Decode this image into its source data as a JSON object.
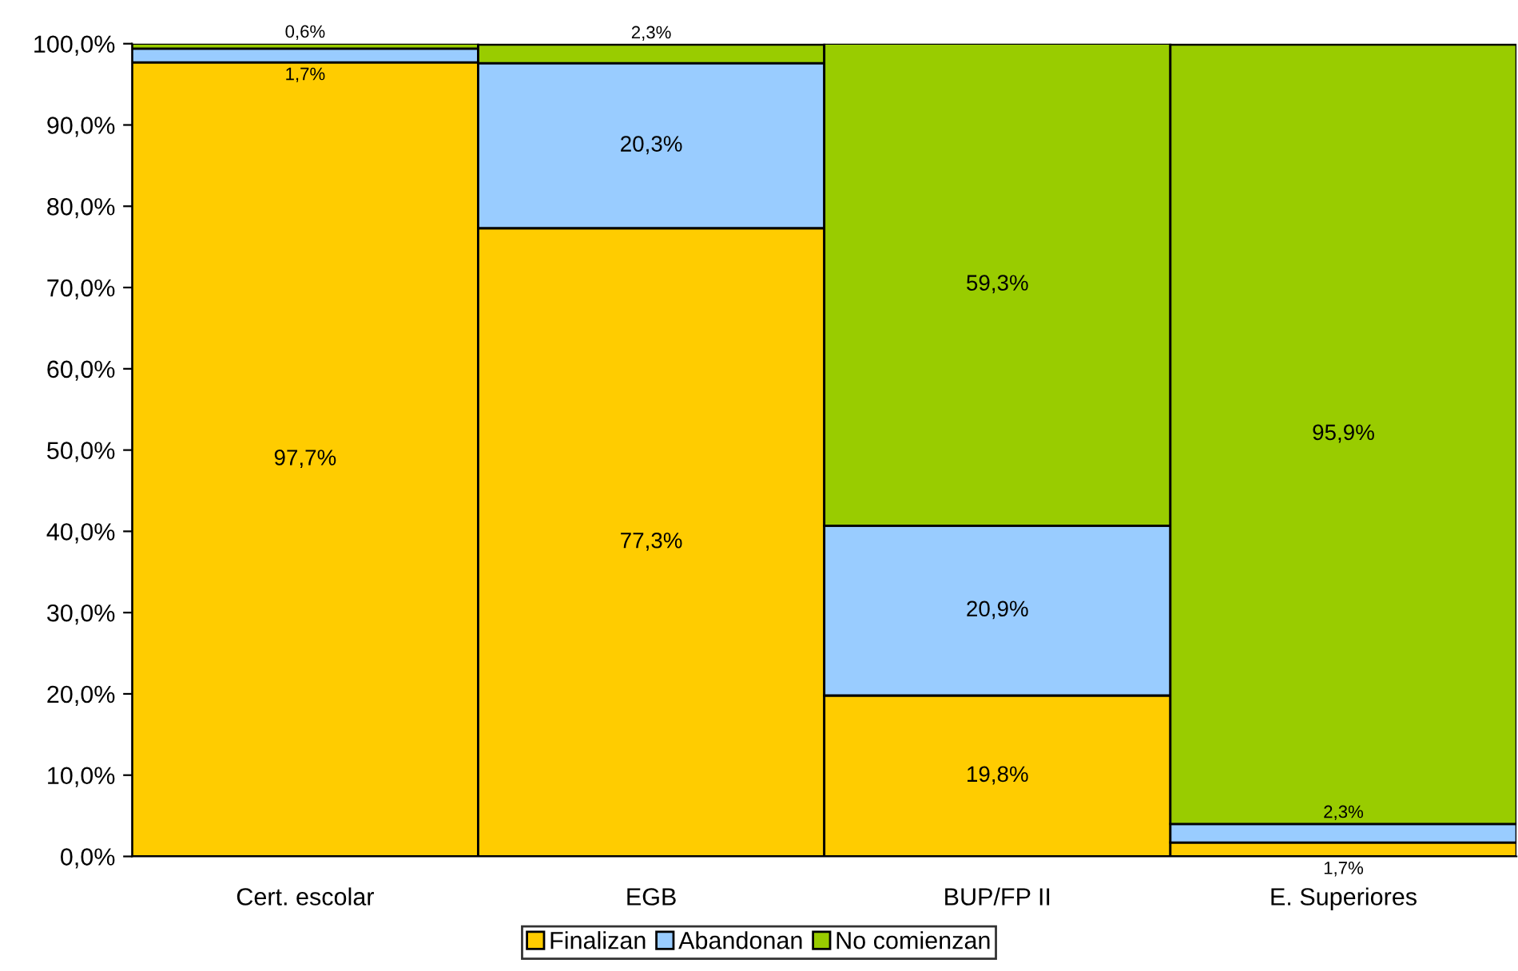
{
  "chart_data": {
    "type": "bar",
    "stacked": true,
    "categories": [
      "Cert. escolar",
      "EGB",
      "BUP/FP II",
      "E. Superiores"
    ],
    "series": [
      {
        "name": "Finalizan",
        "color": "#ffcc00",
        "values": [
          97.7,
          77.3,
          19.8,
          1.7
        ],
        "value_labels": [
          "97,7%",
          "77,3%",
          "19,8%",
          "1,7%"
        ]
      },
      {
        "name": "Abandonan",
        "color": "#99ccff",
        "values": [
          1.7,
          20.3,
          20.9,
          2.3
        ],
        "value_labels": [
          "1,7%",
          "20,3%",
          "20,9%",
          "2,3%"
        ]
      },
      {
        "name": "No comienzan",
        "color": "#99cc00",
        "values": [
          0.6,
          2.3,
          59.3,
          95.9
        ],
        "value_labels": [
          "0,6%",
          "2,3%",
          "59,3%",
          "95,9%"
        ]
      }
    ],
    "ylim": [
      0,
      100
    ],
    "yticks": [
      {
        "value": 0,
        "label": "0,0%"
      },
      {
        "value": 10,
        "label": "10,0%"
      },
      {
        "value": 20,
        "label": "20,0%"
      },
      {
        "value": 30,
        "label": "30,0%"
      },
      {
        "value": 40,
        "label": "40,0%"
      },
      {
        "value": 50,
        "label": "50,0%"
      },
      {
        "value": 60,
        "label": "60,0%"
      },
      {
        "value": 70,
        "label": "70,0%"
      },
      {
        "value": 80,
        "label": "80,0%"
      },
      {
        "value": 90,
        "label": "90,0%"
      },
      {
        "value": 100,
        "label": "100,0%"
      }
    ],
    "grid": false,
    "legend": "bottom"
  }
}
